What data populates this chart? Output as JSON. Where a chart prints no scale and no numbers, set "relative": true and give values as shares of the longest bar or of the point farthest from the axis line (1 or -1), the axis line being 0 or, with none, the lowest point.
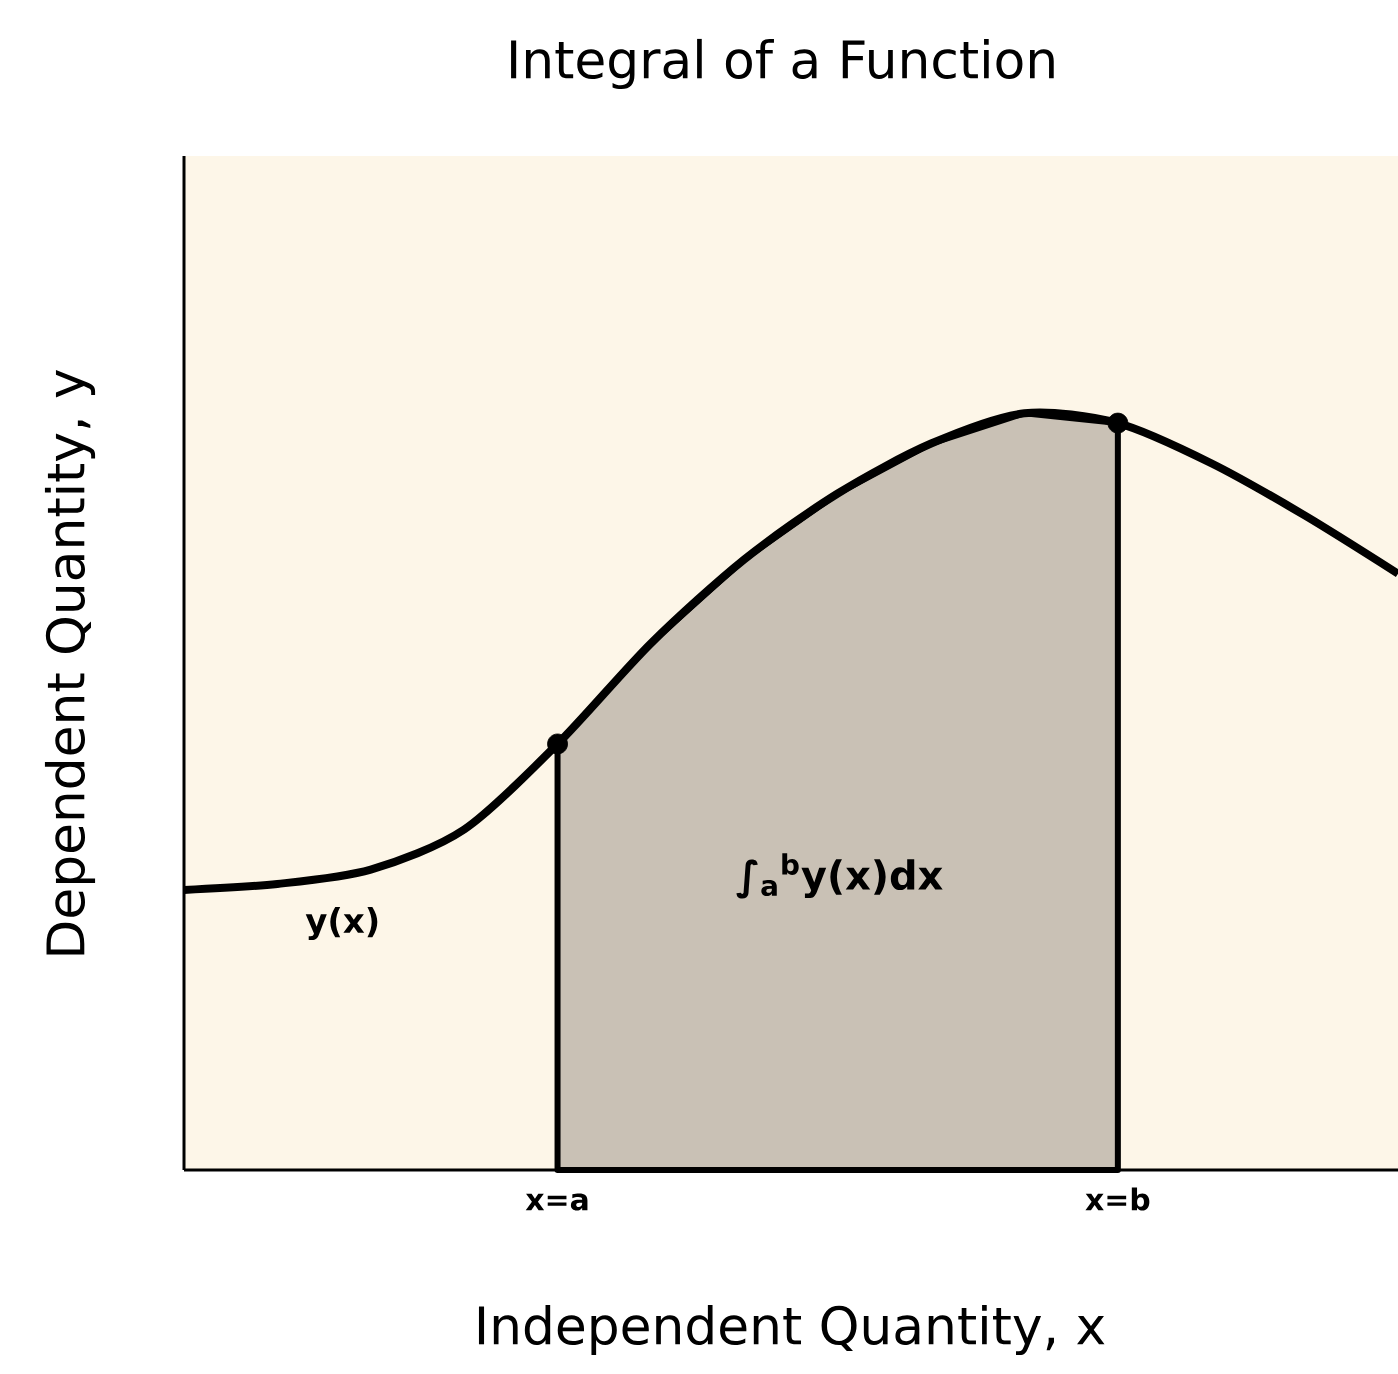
{
  "chart_data": {
    "type": "line",
    "title": "Integral of a Function",
    "xlabel": "Independent Quantity, x",
    "ylabel": "Dependent Quantity, y",
    "relative": true,
    "categories": [
      null,
      null,
      null,
      null,
      "x=a",
      null,
      null,
      null,
      null,
      null,
      "x=b",
      null,
      null,
      null
    ],
    "series": [
      {
        "type": "area",
        "color": "#c9c1b5",
        "values": [
          null,
          null,
          null,
          null,
          0.563,
          0.696,
          0.807,
          0.894,
          0.96,
          1.0,
          0.987,
          null,
          null,
          null
        ]
      },
      {
        "color": "#000000",
        "values": [
          0.37,
          0.378,
          0.397,
          0.45,
          0.563,
          0.696,
          0.807,
          0.894,
          0.96,
          1.0,
          0.987,
          0.934,
          0.865,
          0.788
        ]
      },
      {
        "type": "scatter",
        "color": "#000000",
        "marker": "circle",
        "values": [
          null,
          null,
          null,
          null,
          0.563,
          null,
          null,
          null,
          null,
          null,
          0.987,
          null,
          null,
          null
        ]
      }
    ],
    "annotations": [
      {
        "text": "y(x)",
        "y": 0.378
      },
      "∫$_{a}$$^{b}$y(x)dx"
    ]
  }
}
